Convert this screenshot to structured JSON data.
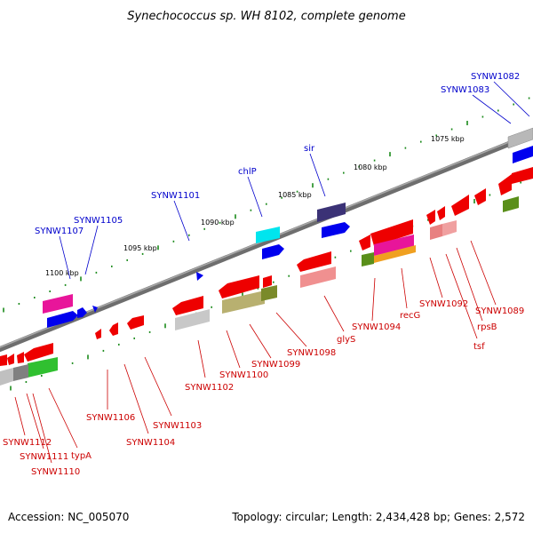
{
  "title": "Synechococcus sp. WH 8102, complete genome",
  "footer": {
    "accession": "Accession: NC_005070",
    "summary": "Topology: circular; Length: 2,434,428 bp; Genes: 2,572"
  },
  "colors": {
    "backbone": "#808080",
    "tick": "#1a8a1a",
    "label_forward": "#0000cc",
    "label_reverse": "#cc0000",
    "leader_forward": "#0000cc",
    "leader_reverse": "#cc0000"
  },
  "kbp_labels": [
    "1075 kbp",
    "1080 kbp",
    "1085 kbp",
    "1090 kbp",
    "1095 kbp",
    "1100 kbp"
  ],
  "forward_genes": [
    {
      "label": "SYNW1082"
    },
    {
      "label": "SYNW1083"
    },
    {
      "label": "sir"
    },
    {
      "label": "chlP"
    },
    {
      "label": "SYNW1101"
    },
    {
      "label": "SYNW1105"
    },
    {
      "label": "SYNW1107"
    }
  ],
  "reverse_genes": [
    {
      "label": "SYNW1089"
    },
    {
      "label": "rpsB"
    },
    {
      "label": "tsf"
    },
    {
      "label": "SYNW1092"
    },
    {
      "label": "recG"
    },
    {
      "label": "SYNW1094"
    },
    {
      "label": "glyS"
    },
    {
      "label": "SYNW1098"
    },
    {
      "label": "SYNW1099"
    },
    {
      "label": "SYNW1100"
    },
    {
      "label": "SYNW1102"
    },
    {
      "label": "SYNW1103"
    },
    {
      "label": "SYNW1104"
    },
    {
      "label": "SYNW1106"
    },
    {
      "label": "typA"
    },
    {
      "label": "SYNW1110"
    },
    {
      "label": "SYNW1111"
    },
    {
      "label": "SYNW1112"
    }
  ]
}
